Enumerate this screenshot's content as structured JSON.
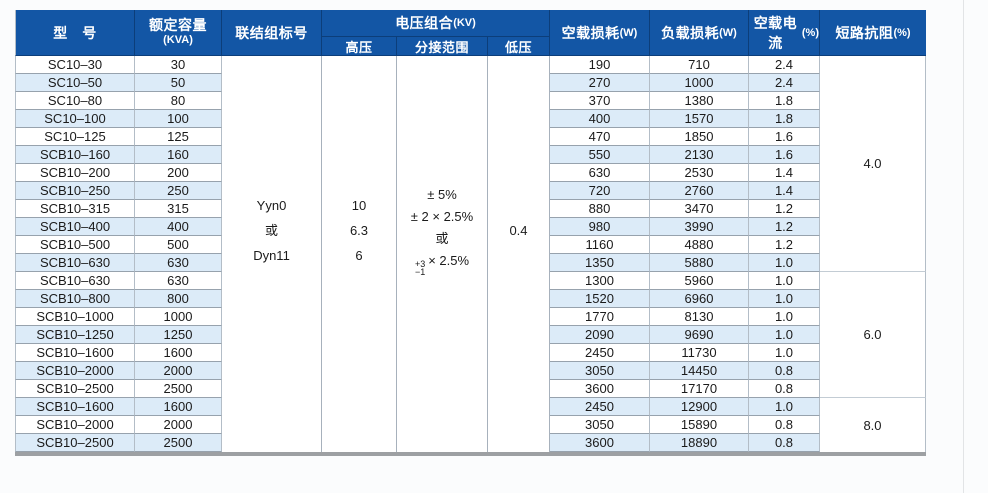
{
  "table": {
    "headers": {
      "model": "型　号",
      "capacity": "额定容量",
      "capacity_unit": "(KVA)",
      "connection": "联结组标号",
      "voltage_group": "电压组合",
      "voltage_group_unit": "(KV)",
      "hv": "高压",
      "tap_range": "分接范围",
      "lv": "低压",
      "no_load_loss": "空载损耗",
      "no_load_loss_unit": "(W)",
      "load_loss": "负载损耗",
      "load_loss_unit": "(W)",
      "no_load_current": "空载电流",
      "no_load_current_unit": "(%)",
      "impedance": "短路抗阻",
      "impedance_unit": "(%)"
    },
    "merged": {
      "connection_lines": [
        "Yyn0",
        "或",
        "Dyn11"
      ],
      "hv_lines": [
        "10",
        "6.3",
        "6"
      ],
      "tap_lines": [
        "± 5%",
        "± 2 × 2.5%",
        "或"
      ],
      "tap_stack_top": "+3",
      "tap_stack_bottom": "−1",
      "tap_suffix": "× 2.5%",
      "lv": "0.4"
    },
    "impedance_groups": [
      {
        "value": "4.0",
        "row_span": 12
      },
      {
        "value": "6.0",
        "row_span": 7
      },
      {
        "value": "8.0",
        "row_span": 3
      }
    ],
    "rows": [
      {
        "model": "SC10–30",
        "kva": "30",
        "nll": "190",
        "ll": "710",
        "nlc": "2.4"
      },
      {
        "model": "SC10–50",
        "kva": "50",
        "nll": "270",
        "ll": "1000",
        "nlc": "2.4"
      },
      {
        "model": "SC10–80",
        "kva": "80",
        "nll": "370",
        "ll": "1380",
        "nlc": "1.8"
      },
      {
        "model": "SC10–100",
        "kva": "100",
        "nll": "400",
        "ll": "1570",
        "nlc": "1.8"
      },
      {
        "model": "SC10–125",
        "kva": "125",
        "nll": "470",
        "ll": "1850",
        "nlc": "1.6"
      },
      {
        "model": "SCB10–160",
        "kva": "160",
        "nll": "550",
        "ll": "2130",
        "nlc": "1.6"
      },
      {
        "model": "SCB10–200",
        "kva": "200",
        "nll": "630",
        "ll": "2530",
        "nlc": "1.4"
      },
      {
        "model": "SCB10–250",
        "kva": "250",
        "nll": "720",
        "ll": "2760",
        "nlc": "1.4"
      },
      {
        "model": "SCB10–315",
        "kva": "315",
        "nll": "880",
        "ll": "3470",
        "nlc": "1.2"
      },
      {
        "model": "SCB10–400",
        "kva": "400",
        "nll": "980",
        "ll": "3990",
        "nlc": "1.2"
      },
      {
        "model": "SCB10–500",
        "kva": "500",
        "nll": "1160",
        "ll": "4880",
        "nlc": "1.2"
      },
      {
        "model": "SCB10–630",
        "kva": "630",
        "nll": "1350",
        "ll": "5880",
        "nlc": "1.0"
      },
      {
        "model": "SCB10–630",
        "kva": "630",
        "nll": "1300",
        "ll": "5960",
        "nlc": "1.0"
      },
      {
        "model": "SCB10–800",
        "kva": "800",
        "nll": "1520",
        "ll": "6960",
        "nlc": "1.0"
      },
      {
        "model": "SCB10–1000",
        "kva": "1000",
        "nll": "1770",
        "ll": "8130",
        "nlc": "1.0"
      },
      {
        "model": "SCB10–1250",
        "kva": "1250",
        "nll": "2090",
        "ll": "9690",
        "nlc": "1.0"
      },
      {
        "model": "SCB10–1600",
        "kva": "1600",
        "nll": "2450",
        "ll": "11730",
        "nlc": "1.0"
      },
      {
        "model": "SCB10–2000",
        "kva": "2000",
        "nll": "3050",
        "ll": "14450",
        "nlc": "0.8"
      },
      {
        "model": "SCB10–2500",
        "kva": "2500",
        "nll": "3600",
        "ll": "17170",
        "nlc": "0.8"
      },
      {
        "model": "SCB10–1600",
        "kva": "1600",
        "nll": "2450",
        "ll": "12900",
        "nlc": "1.0"
      },
      {
        "model": "SCB10–2000",
        "kva": "2000",
        "nll": "3050",
        "ll": "15890",
        "nlc": "0.8"
      },
      {
        "model": "SCB10–2500",
        "kva": "2500",
        "nll": "3600",
        "ll": "18890",
        "nlc": "0.8"
      }
    ],
    "colors": {
      "header_bg": "#1356a5",
      "stripe_bg": "#dcebf8",
      "header_divider": "#0c3e7a",
      "row_line": "#97a2ad"
    }
  }
}
